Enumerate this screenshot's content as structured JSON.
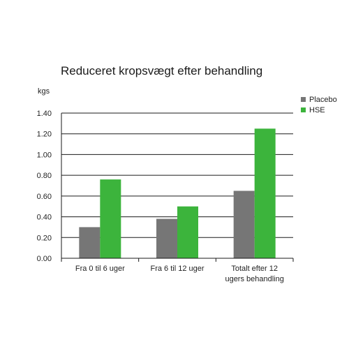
{
  "chart_data": {
    "type": "bar",
    "title": "Reduceret kropsvægt efter behandling",
    "unit_label": "kgs",
    "categories": [
      [
        "Fra 0 til 6 uger"
      ],
      [
        "Fra 6 til 12 uger"
      ],
      [
        "Totalt efter 12",
        "ugers behandling"
      ]
    ],
    "series": [
      {
        "name": "Placebo",
        "color": "#767676",
        "values": [
          0.3,
          0.38,
          0.65
        ]
      },
      {
        "name": "HSE",
        "color": "#3cb43c",
        "values": [
          0.76,
          0.5,
          1.25
        ]
      }
    ],
    "ylim": [
      0,
      1.4
    ],
    "yticks": [
      "0.00",
      "0.20",
      "0.40",
      "0.60",
      "0.80",
      "1.00",
      "1.20",
      "1.40"
    ],
    "grid": true,
    "legend_position": "top-right"
  }
}
